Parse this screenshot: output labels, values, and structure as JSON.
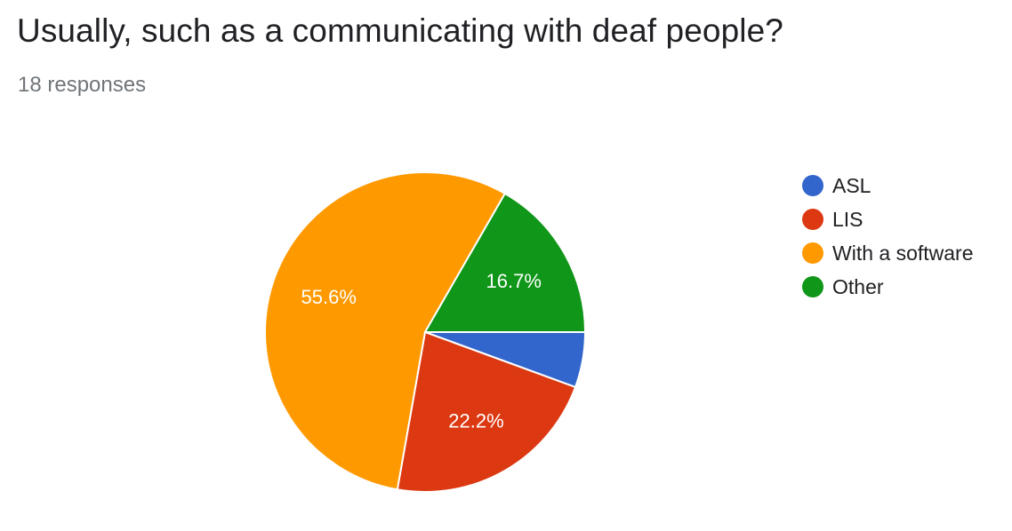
{
  "header": {
    "title": "Usually, such as a communicating with deaf people?",
    "subtitle": "18 responses"
  },
  "chart_data": {
    "type": "pie",
    "title": "Usually, such as a communicating with deaf people?",
    "categories": [
      "ASL",
      "LIS",
      "With a software",
      "Other"
    ],
    "values": [
      5.6,
      22.2,
      55.6,
      16.7
    ],
    "data_labels": [
      "",
      "22.2%",
      "55.6%",
      "16.7%"
    ],
    "colors": [
      "#3366cc",
      "#dc3912",
      "#ff9900",
      "#109618"
    ],
    "legend_position": "right",
    "slice_order": "clockwise-from-3-oclock"
  }
}
